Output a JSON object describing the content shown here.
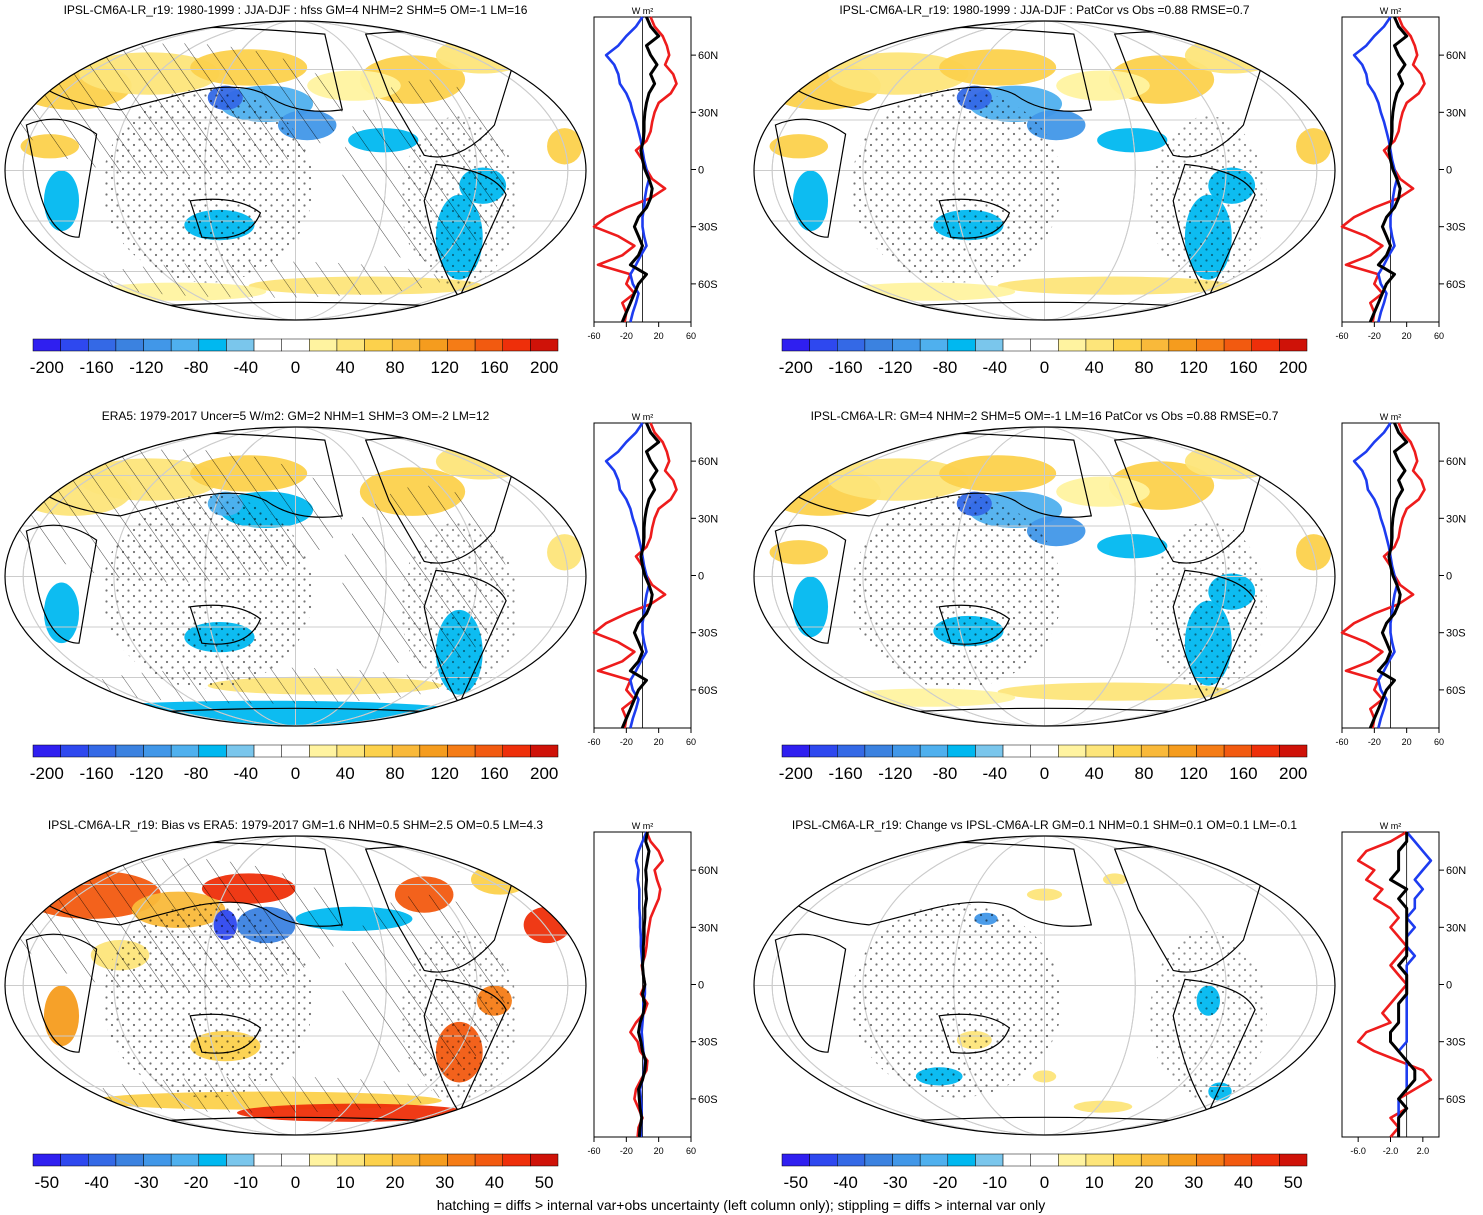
{
  "footer": "hatching = diffs > internal var+obs uncertainty (left column only); stippling = diffs > internal var only",
  "zonal_unit": "W m²",
  "lat_ticks": [
    "60N",
    "30N",
    "0",
    "30S",
    "60S"
  ],
  "colors": {
    "palette": [
      "#2f1ff0",
      "#2e48ef",
      "#3469e6",
      "#3b82e0",
      "#4197e8",
      "#4fb0ee",
      "#00b8f0",
      "#7ac6ec",
      "#ffffff",
      "#ffffff",
      "#fff3a0",
      "#fde57a",
      "#fcd14c",
      "#f9b93a",
      "#f59c1e",
      "#f57c16",
      "#f25a10",
      "#ee2f0a",
      "#cf1208"
    ],
    "red": "#ee1c1c",
    "blue": "#1d3cf0",
    "black": "#000000",
    "ocean_white": "#ffffff",
    "grid": "#cccccc"
  },
  "chart_data": [
    {
      "type": "map",
      "panel": "top-left",
      "title": "IPSL-CM6A-LR_r19: 1980-1999 : JJA-DJF : hfss GM=4 NHM=2 SHM=5 OM=-1 LM=16",
      "colorbar_labels": [
        "-200",
        "-160",
        "-120",
        "-80",
        "-40",
        "0",
        "40",
        "80",
        "120",
        "160",
        "200"
      ],
      "zonal_xticks": [
        "-60",
        "-20",
        "20",
        "60"
      ],
      "zonal_xrange": [
        -60,
        60
      ],
      "hatching": true
    },
    {
      "type": "map",
      "panel": "top-right",
      "title": "IPSL-CM6A-LR_r19: 1980-1999 : JJA-DJF : PatCor vs Obs =0.88 RMSE=0.7",
      "colorbar_labels": [
        "-200",
        "-160",
        "-120",
        "-80",
        "-40",
        "0",
        "40",
        "80",
        "120",
        "160",
        "200"
      ],
      "zonal_xticks": [
        "-60",
        "-20",
        "20",
        "60"
      ],
      "zonal_xrange": [
        -60,
        60
      ],
      "hatching": false
    },
    {
      "type": "map",
      "panel": "middle-left",
      "title": "ERA5: 1979-2017 Uncer=5 W/m2: GM=2 NHM=1 SHM=3 OM=-2 LM=12",
      "colorbar_labels": [
        "-200",
        "-160",
        "-120",
        "-80",
        "-40",
        "0",
        "40",
        "80",
        "120",
        "160",
        "200"
      ],
      "zonal_xticks": [
        "-60",
        "-20",
        "20",
        "60"
      ],
      "zonal_xrange": [
        -60,
        60
      ],
      "hatching": true
    },
    {
      "type": "map",
      "panel": "middle-right",
      "title": "IPSL-CM6A-LR: GM=4 NHM=2 SHM=5 OM=-1 LM=16 PatCor vs Obs =0.88 RMSE=0.7",
      "colorbar_labels": [
        "-200",
        "-160",
        "-120",
        "-80",
        "-40",
        "0",
        "40",
        "80",
        "120",
        "160",
        "200"
      ],
      "zonal_xticks": [
        "-60",
        "-20",
        "20",
        "60"
      ],
      "zonal_xrange": [
        -60,
        60
      ],
      "hatching": false
    },
    {
      "type": "map",
      "panel": "bottom-left",
      "title": "IPSL-CM6A-LR_r19: Bias vs ERA5: 1979-2017 GM=1.6 NHM=0.5 SHM=2.5 OM=0.5 LM=4.3",
      "colorbar_labels": [
        "-50",
        "-40",
        "-30",
        "-20",
        "-10",
        "0",
        "10",
        "20",
        "30",
        "40",
        "50"
      ],
      "zonal_xticks": [
        "-60",
        "-20",
        "20",
        "60"
      ],
      "zonal_xrange": [
        -60,
        60
      ],
      "hatching": true
    },
    {
      "type": "map",
      "panel": "bottom-right",
      "title": "IPSL-CM6A-LR_r19: Change vs IPSL-CM6A-LR GM=0.1 NHM=0.1 SHM=0.1 OM=0.1 LM=-0.1",
      "colorbar_labels": [
        "-50",
        "-40",
        "-30",
        "-20",
        "-10",
        "0",
        "10",
        "20",
        "30",
        "40",
        "50"
      ],
      "zonal_xticks": [
        "-6.0",
        "-2.0",
        "2.0"
      ],
      "zonal_xrange": [
        -8,
        4
      ],
      "hatching": false
    }
  ],
  "zonal_series": {
    "lats": [
      80,
      75,
      70,
      65,
      60,
      55,
      50,
      45,
      40,
      35,
      30,
      25,
      20,
      15,
      10,
      5,
      0,
      -5,
      -10,
      -15,
      -20,
      -25,
      -30,
      -35,
      -40,
      -45,
      -50,
      -55,
      -60,
      -65,
      -70,
      -75,
      -80
    ],
    "A": {
      "red": [
        10,
        15,
        25,
        30,
        33,
        28,
        38,
        42,
        35,
        20,
        15,
        12,
        10,
        5,
        -8,
        0,
        5,
        12,
        28,
        10,
        -20,
        -45,
        -60,
        -30,
        -10,
        -25,
        -55,
        -15,
        -20,
        -10,
        -25,
        -20,
        -22
      ],
      "blue": [
        0,
        -8,
        -20,
        -30,
        -45,
        -35,
        -30,
        -28,
        -20,
        -15,
        -12,
        -8,
        -5,
        -2,
        0,
        2,
        5,
        8,
        5,
        3,
        2,
        0,
        0,
        2,
        5,
        -2,
        -8,
        -15,
        -12,
        -5,
        -8,
        -12,
        -15
      ],
      "black": [
        5,
        10,
        20,
        5,
        10,
        18,
        10,
        15,
        8,
        5,
        3,
        2,
        2,
        1,
        -2,
        0,
        3,
        8,
        12,
        10,
        5,
        -5,
        -10,
        -5,
        0,
        -5,
        -15,
        5,
        -5,
        -10,
        -15,
        -20,
        -25
      ]
    },
    "B": {
      "red": [
        5,
        10,
        20,
        25,
        15,
        18,
        22,
        20,
        15,
        10,
        8,
        6,
        5,
        3,
        -1,
        1,
        3,
        -2,
        6,
        2,
        -8,
        -15,
        -6,
        -3,
        6,
        5,
        -2,
        -8,
        -10,
        -5,
        0,
        -5,
        -6
      ],
      "blue": [
        5,
        0,
        -5,
        -8,
        -5,
        -6,
        -4,
        -4,
        -4,
        -3,
        -3,
        -2,
        -2,
        -1,
        0,
        1,
        3,
        3,
        1,
        1,
        0,
        -1,
        0,
        1,
        3,
        2,
        0,
        -3,
        -2,
        -1,
        -1,
        -2,
        -2
      ],
      "black": [
        6,
        4,
        8,
        6,
        4,
        5,
        4,
        5,
        3,
        3,
        2,
        2,
        1,
        1,
        0,
        1,
        3,
        0,
        3,
        1,
        -3,
        -5,
        -2,
        0,
        4,
        3,
        0,
        -5,
        -4,
        -3,
        -1,
        -3,
        -4
      ]
    },
    "C": {
      "red": [
        0,
        -2,
        -5,
        -6,
        -4,
        -5,
        -3,
        -4,
        -2,
        -1,
        -2,
        -1,
        0,
        -1,
        -2,
        -1,
        0,
        -1,
        -2,
        -3,
        -2,
        -5,
        -6,
        -4,
        -1,
        2,
        3,
        1,
        -1,
        0,
        -2,
        -1,
        -2
      ],
      "blue": [
        0,
        1,
        2,
        3,
        2,
        1,
        2,
        1,
        1,
        0,
        1,
        0,
        0,
        1,
        0,
        0,
        0,
        0,
        0,
        0,
        0,
        0,
        0,
        -1,
        0,
        0,
        0,
        0,
        -1,
        -1,
        -1,
        -1,
        -1
      ],
      "black": [
        0,
        0,
        -1,
        -1,
        -1,
        -2,
        0,
        -1,
        0,
        0,
        0,
        0,
        0,
        0,
        -1,
        0,
        0,
        0,
        -1,
        -1,
        -1,
        -2,
        -2,
        -1,
        0,
        1,
        1,
        0,
        -1,
        0,
        -1,
        -1,
        -1
      ]
    }
  }
}
